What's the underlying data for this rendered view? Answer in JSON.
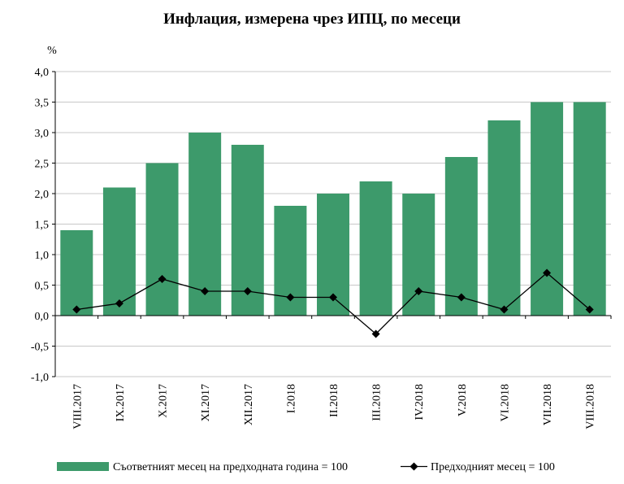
{
  "chart_data": {
    "type": "bar",
    "title": "Инфлация, измерена чрез ИПЦ, по месеци",
    "ylabel": "%",
    "xlabel": "",
    "ylim": [
      -1.0,
      4.0
    ],
    "ytick_step": 0.5,
    "ytick_labels": [
      "-1,0",
      "-0,5",
      "0,0",
      "0,5",
      "1,0",
      "1,5",
      "2,0",
      "2,5",
      "3,0",
      "3,5",
      "4,0"
    ],
    "grid": true,
    "legend_position": "bottom",
    "categories": [
      "VIII.2017",
      "IX.2017",
      "X.2017",
      "XI.2017",
      "XII.2017",
      "I.2018",
      "II.2018",
      "III.2018",
      "IV.2018",
      "V.2018",
      "VI.2018",
      "VII.2018",
      "VIII.2018"
    ],
    "series": [
      {
        "name": "Съответният месец на предходната година = 100",
        "kind": "bar",
        "color": "#3d9a6b",
        "values": [
          1.4,
          2.1,
          2.5,
          3.0,
          2.8,
          1.8,
          2.0,
          2.2,
          2.0,
          2.6,
          3.2,
          3.5,
          3.5
        ]
      },
      {
        "name": "Предходният месец = 100",
        "kind": "line",
        "color": "#000000",
        "marker": "diamond",
        "values": [
          0.1,
          0.2,
          0.6,
          0.4,
          0.4,
          0.3,
          0.3,
          -0.3,
          0.4,
          0.3,
          0.1,
          0.7,
          0.1
        ]
      }
    ]
  }
}
